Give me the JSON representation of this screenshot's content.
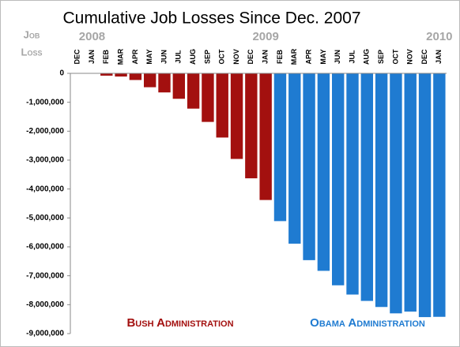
{
  "chart_data": {
    "type": "bar",
    "title": "Cumulative Job Losses Since Dec. 2007",
    "ylabel": [
      "Job",
      "Loss"
    ],
    "categories": [
      "DEC",
      "JAN",
      "FEB",
      "MAR",
      "APR",
      "MAY",
      "JUN",
      "JUL",
      "AUG",
      "SEP",
      "OCT",
      "NOV",
      "DEC",
      "JAN",
      "FEB",
      "MAR",
      "APR",
      "MAY",
      "JUN",
      "JUL",
      "AUG",
      "SEP",
      "OCT",
      "NOV",
      "DEC",
      "JAN"
    ],
    "year_labels": [
      null,
      "2008",
      null,
      null,
      null,
      null,
      null,
      null,
      null,
      null,
      null,
      null,
      null,
      "2009",
      null,
      null,
      null,
      null,
      null,
      null,
      null,
      null,
      null,
      null,
      null,
      "2010"
    ],
    "series": [
      {
        "name": "Bush Administration",
        "color": "#a3100f",
        "values": [
          0,
          -10000,
          -80000,
          -110000,
          -230000,
          -480000,
          -660000,
          -880000,
          -1220000,
          -1680000,
          -2220000,
          -2960000,
          -3630000,
          -4380000,
          null,
          null,
          null,
          null,
          null,
          null,
          null,
          null,
          null,
          null,
          null,
          null
        ]
      },
      {
        "name": "Obama Administration",
        "color": "#1f7bd1",
        "values": [
          null,
          null,
          null,
          null,
          null,
          null,
          null,
          null,
          null,
          null,
          null,
          null,
          null,
          null,
          -5110000,
          -5890000,
          -6460000,
          -6830000,
          -7330000,
          -7650000,
          -7870000,
          -8080000,
          -8300000,
          -8240000,
          -8430000,
          -8420000
        ]
      }
    ],
    "ylim": [
      -9000000,
      0
    ],
    "yticks": [
      0,
      {
        "value": -1000000,
        "label": "-1,000,000"
      },
      {
        "value": -2000000,
        "label": "-2,000,000"
      },
      {
        "value": -3000000,
        "label": "-3,000,000"
      },
      {
        "value": -4000000,
        "label": "-4,000,000"
      },
      {
        "value": -5000000,
        "label": "-5,000,000"
      },
      {
        "value": -6000000,
        "label": "-6,000,000"
      },
      {
        "value": -7000000,
        "label": "-7,000,000"
      },
      {
        "value": -8000000,
        "label": "-8,000,000"
      },
      {
        "value": -9000000,
        "label": "-9,000,000"
      }
    ]
  }
}
